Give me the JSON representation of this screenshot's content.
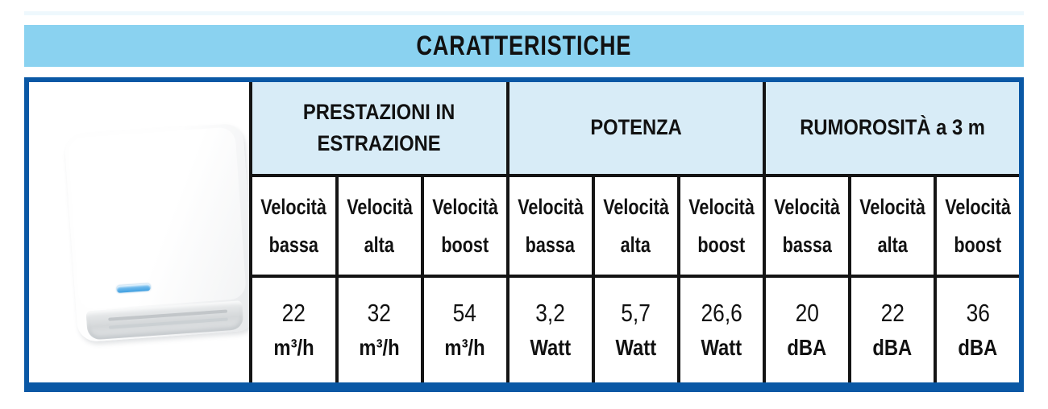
{
  "page": {
    "title": "CARATTERISTICHE"
  },
  "table": {
    "groups": [
      {
        "label": "PRESTAZIONI IN ESTRAZIONE"
      },
      {
        "label": "POTENZA"
      },
      {
        "label": "RUMOROSITÀ a 3 m"
      }
    ],
    "speed_headers": [
      {
        "line1": "Velocità",
        "line2": "bassa"
      },
      {
        "line1": "Velocità",
        "line2": "alta"
      },
      {
        "line1": "Velocità",
        "line2": "boost"
      },
      {
        "line1": "Velocità",
        "line2": "bassa"
      },
      {
        "line1": "Velocità",
        "line2": "alta"
      },
      {
        "line1": "Velocità",
        "line2": "boost"
      },
      {
        "line1": "Velocità",
        "line2": "bassa"
      },
      {
        "line1": "Velocità",
        "line2": "alta"
      },
      {
        "line1": "Velocità",
        "line2": "boost"
      }
    ],
    "values": [
      {
        "value": "22",
        "unit": "m³/h"
      },
      {
        "value": "32",
        "unit": "m³/h"
      },
      {
        "value": "54",
        "unit": "m³/h"
      },
      {
        "value": "3,2",
        "unit": "Watt"
      },
      {
        "value": "5,7",
        "unit": "Watt"
      },
      {
        "value": "26,6",
        "unit": "Watt"
      },
      {
        "value": "20",
        "unit": "dBA"
      },
      {
        "value": "22",
        "unit": "dBA"
      },
      {
        "value": "36",
        "unit": "dBA"
      }
    ]
  },
  "colors": {
    "title_bar_bg": "#8ad2f0",
    "group_header_bg": "#d8ecf7",
    "outer_border": "#0a58a5",
    "grid_line": "#141414"
  }
}
